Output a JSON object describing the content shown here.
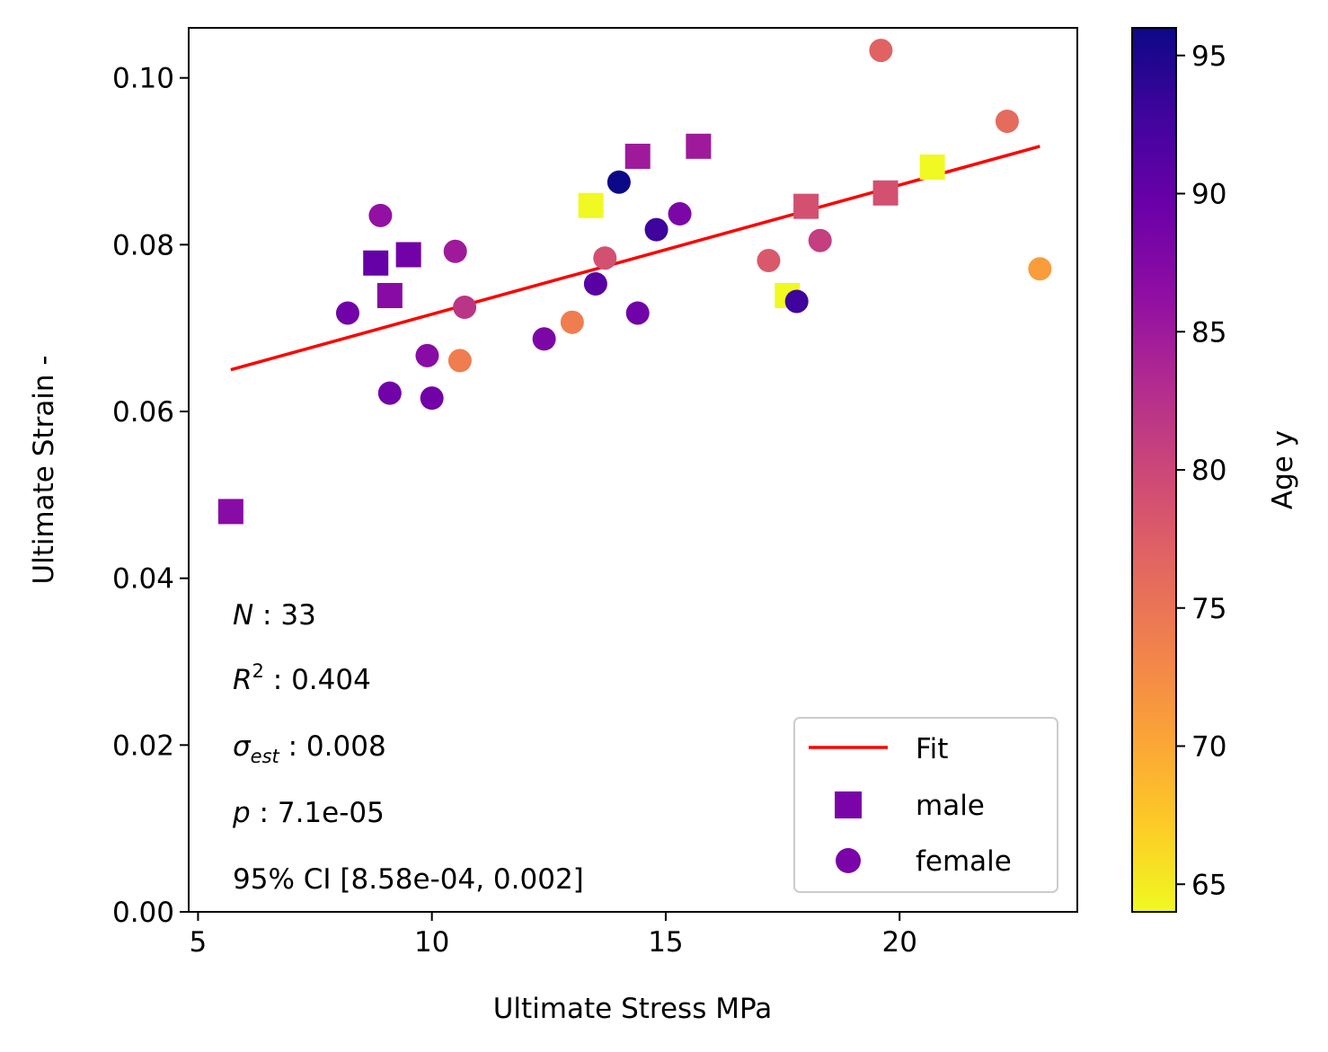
{
  "chart_data": {
    "type": "scatter",
    "xlabel": "Ultimate Stress MPa",
    "ylabel": "Ultimate Strain -",
    "xlim": [
      4.8,
      23.8
    ],
    "ylim": [
      0.0,
      0.106
    ],
    "x_ticks": [
      5,
      10,
      15,
      20
    ],
    "x_tick_labels": [
      "5",
      "10",
      "15",
      "20"
    ],
    "y_ticks": [
      0.0,
      0.02,
      0.04,
      0.06,
      0.08,
      0.1
    ],
    "y_tick_labels": [
      "0.00",
      "0.02",
      "0.04",
      "0.06",
      "0.08",
      "0.10"
    ],
    "grid": false,
    "legend_position": "bottom-right",
    "legend": {
      "fit": "Fit",
      "male": "male",
      "female": "female"
    },
    "legend_colors": {
      "fit": "#ff0000",
      "marker": "#7a04a8"
    },
    "fit_line": {
      "x": [
        5.7,
        23.0
      ],
      "y": [
        0.065,
        0.0918
      ],
      "color": "#ff0000"
    },
    "stats": {
      "n_label": "N",
      "n_value": " : 33",
      "r2_label": "R",
      "r2_sup": "2",
      "r2_value": " : 0.404",
      "sigma_label": "σ",
      "sigma_sub": "est",
      "sigma_value": " : 0.008",
      "p_label": "p",
      "p_value": " : 7.1e-05",
      "ci": "95% CI [8.58e-04,  0.002]"
    },
    "colorbar": {
      "label": "Age y",
      "range": [
        64,
        96
      ],
      "ticks": [
        65,
        70,
        75,
        80,
        85,
        90,
        95
      ],
      "tick_labels": [
        "65",
        "70",
        "75",
        "80",
        "85",
        "90",
        "95"
      ],
      "colormap": "plasma_r"
    },
    "series": [
      {
        "name": "male",
        "marker": "square",
        "points": [
          {
            "x": 5.7,
            "y": 0.048,
            "age": 87
          },
          {
            "x": 8.8,
            "y": 0.0778,
            "age": 90
          },
          {
            "x": 9.1,
            "y": 0.0739,
            "age": 87
          },
          {
            "x": 9.5,
            "y": 0.0788,
            "age": 89
          },
          {
            "x": 13.4,
            "y": 0.0847,
            "age": 64
          },
          {
            "x": 14.4,
            "y": 0.0906,
            "age": 85
          },
          {
            "x": 15.7,
            "y": 0.0918,
            "age": 85
          },
          {
            "x": 17.6,
            "y": 0.0739,
            "age": 64
          },
          {
            "x": 18.0,
            "y": 0.0846,
            "age": 79
          },
          {
            "x": 19.7,
            "y": 0.0862,
            "age": 79
          },
          {
            "x": 20.7,
            "y": 0.0893,
            "age": 64
          }
        ]
      },
      {
        "name": "female",
        "marker": "circle",
        "points": [
          {
            "x": 8.2,
            "y": 0.0718,
            "age": 89
          },
          {
            "x": 8.9,
            "y": 0.0835,
            "age": 86
          },
          {
            "x": 9.1,
            "y": 0.0622,
            "age": 89
          },
          {
            "x": 9.9,
            "y": 0.0667,
            "age": 87
          },
          {
            "x": 10.0,
            "y": 0.0616,
            "age": 89
          },
          {
            "x": 10.5,
            "y": 0.0792,
            "age": 85
          },
          {
            "x": 10.6,
            "y": 0.0661,
            "age": 74
          },
          {
            "x": 10.7,
            "y": 0.0725,
            "age": 82
          },
          {
            "x": 12.4,
            "y": 0.0687,
            "age": 88
          },
          {
            "x": 13.0,
            "y": 0.0707,
            "age": 74
          },
          {
            "x": 13.5,
            "y": 0.0753,
            "age": 91
          },
          {
            "x": 13.7,
            "y": 0.0784,
            "age": 79
          },
          {
            "x": 14.0,
            "y": 0.0875,
            "age": 96
          },
          {
            "x": 14.4,
            "y": 0.0718,
            "age": 89
          },
          {
            "x": 14.8,
            "y": 0.0818,
            "age": 93
          },
          {
            "x": 15.3,
            "y": 0.0837,
            "age": 88
          },
          {
            "x": 17.2,
            "y": 0.0781,
            "age": 78
          },
          {
            "x": 17.8,
            "y": 0.0732,
            "age": 93
          },
          {
            "x": 18.3,
            "y": 0.0805,
            "age": 81
          },
          {
            "x": 19.6,
            "y": 0.1033,
            "age": 77
          },
          {
            "x": 22.3,
            "y": 0.0948,
            "age": 76
          },
          {
            "x": 23.0,
            "y": 0.0771,
            "age": 71
          }
        ]
      }
    ]
  }
}
